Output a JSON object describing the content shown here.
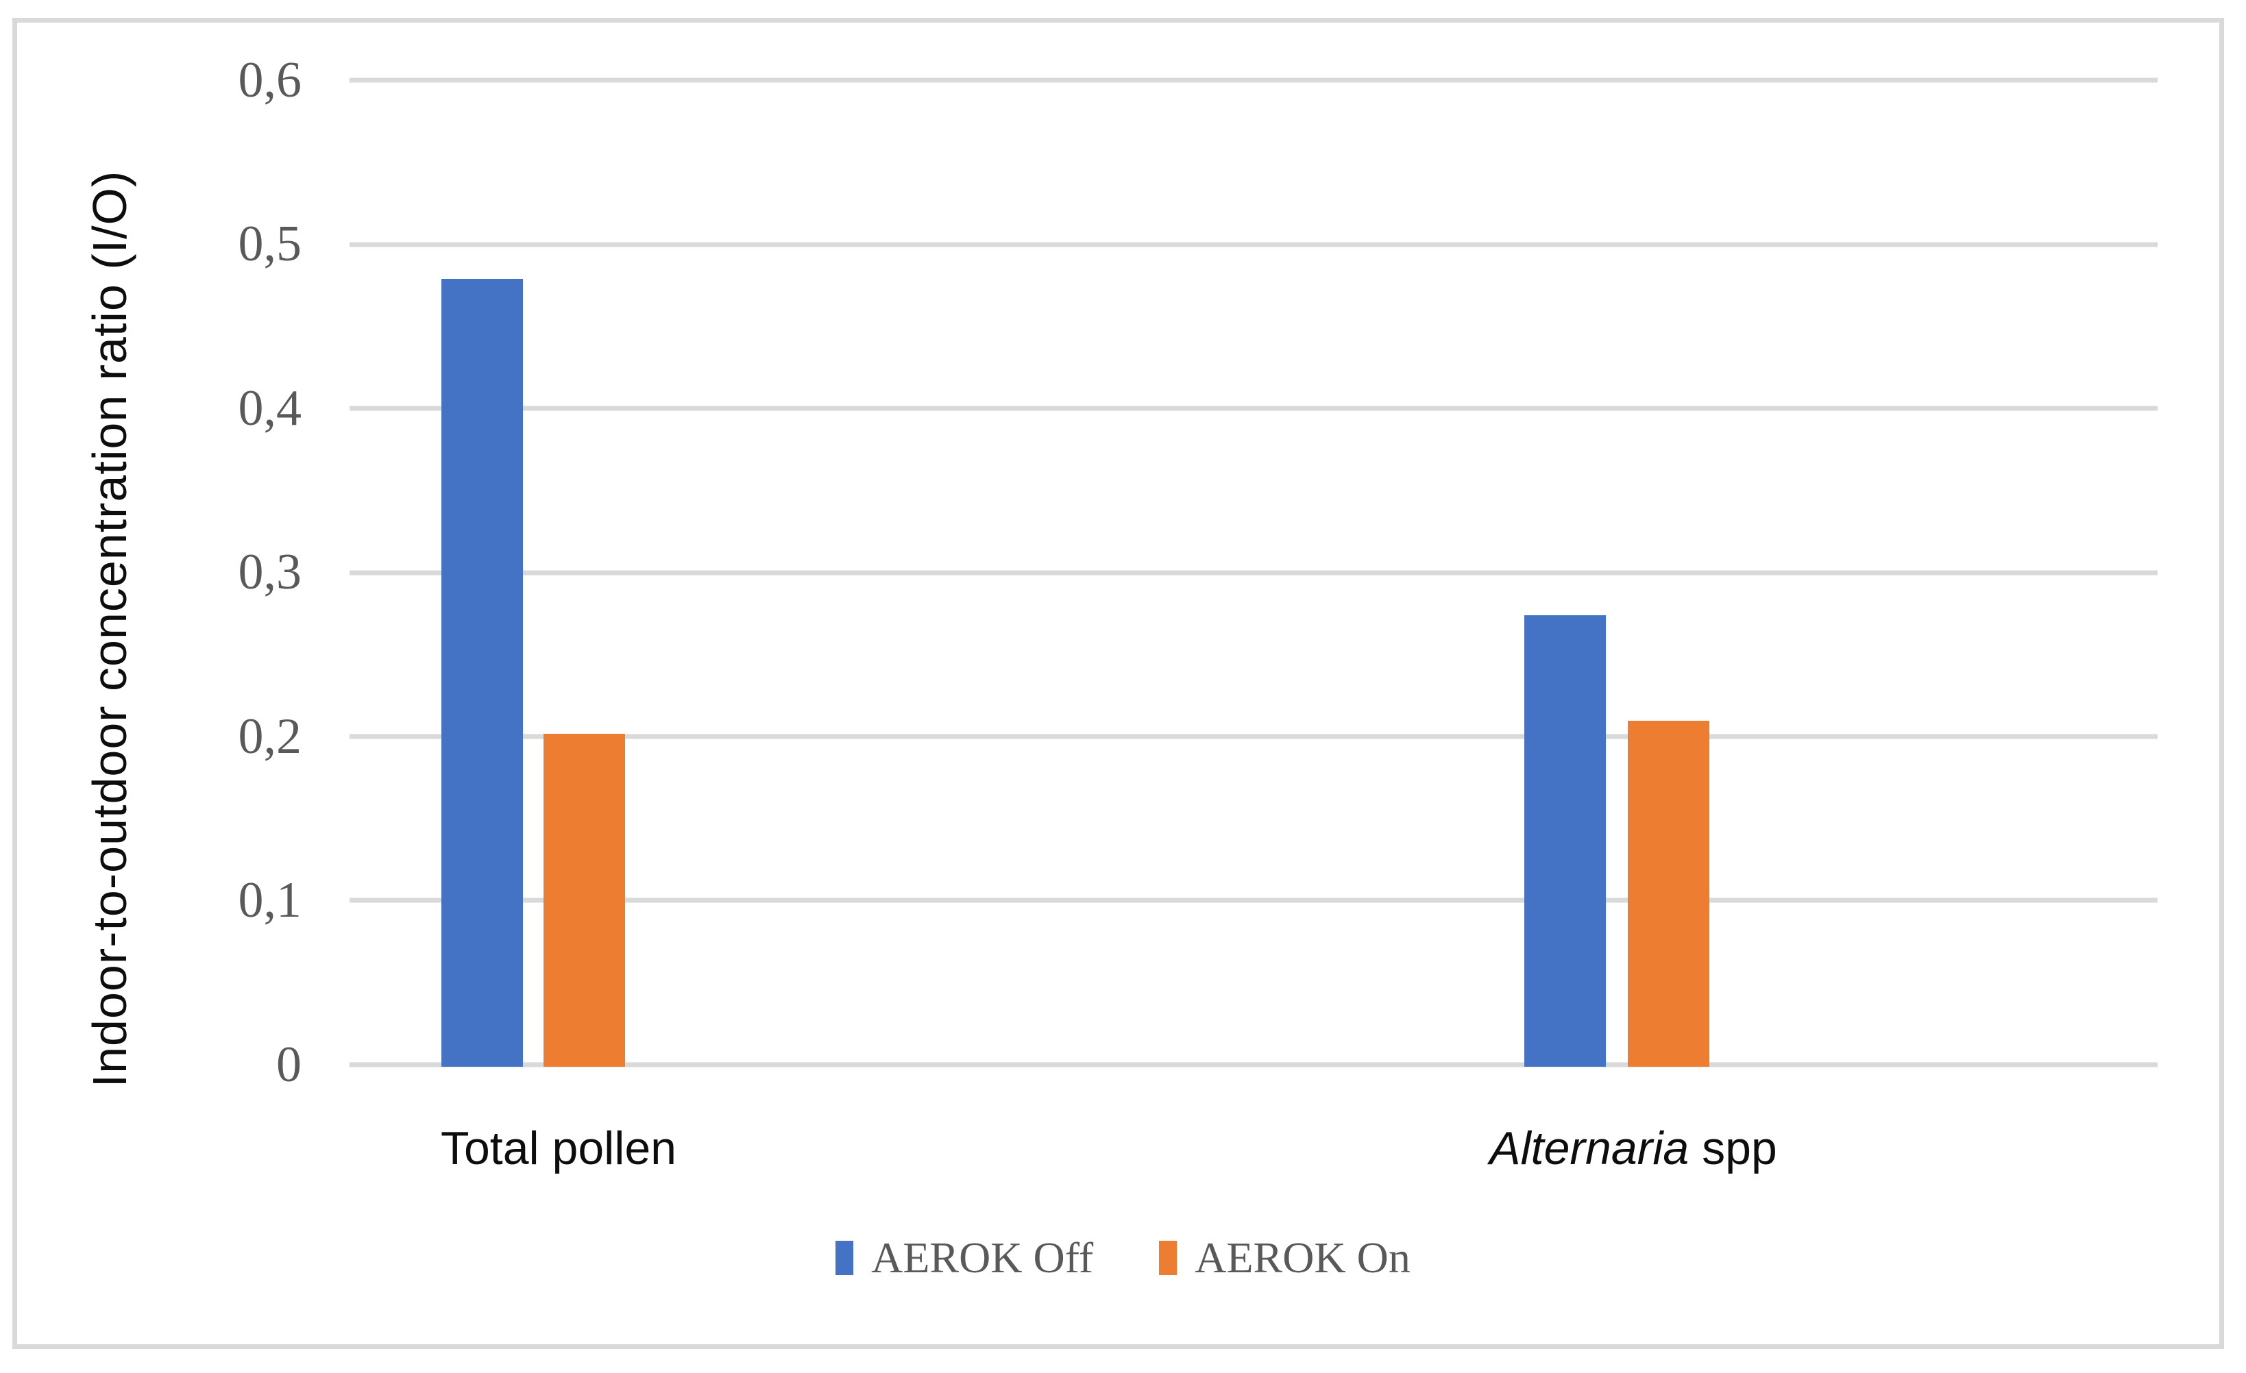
{
  "chart_data": {
    "type": "bar",
    "title": "",
    "categories": [
      "Total pollen",
      "Alternaria spp"
    ],
    "series": [
      {
        "name": "AEROK Off",
        "color": "#4472C4",
        "values": [
          0.48,
          0.275
        ]
      },
      {
        "name": "AEROK On",
        "color": "#ED7D31",
        "values": [
          0.203,
          0.211
        ]
      }
    ],
    "xlabel": "",
    "ylabel": "Indoor-to-outdoor concentration ratio (I/O)",
    "ylim": [
      0,
      0.6
    ],
    "ytick_step": 0.1,
    "decimal_separator": ",",
    "grid": true,
    "gridline_color": "#D9D9D9",
    "legend_position": "bottom"
  },
  "y_axis": {
    "title": "Indoor-to-outdoor concentration ratio (I/O)",
    "ticks": [
      "0,6",
      "0,5",
      "0,4",
      "0,3",
      "0,2",
      "0,1",
      "0"
    ]
  },
  "x_axis": {
    "categories": [
      {
        "italic": "",
        "plain": "Total pollen"
      },
      {
        "italic": "Alternaria",
        "plain": " spp"
      }
    ]
  },
  "legend": {
    "items": [
      {
        "label": "AEROK Off",
        "color": "#4472C4"
      },
      {
        "label": "AEROK On",
        "color": "#ED7D31"
      }
    ]
  },
  "colors": {
    "bar_blue": "#4472C4",
    "bar_orange": "#ED7D31",
    "grid": "#D9D9D9",
    "frame_border": "#D9D9D9",
    "tick_text": "#595959",
    "legend_text": "#595959",
    "label_text": "#0d0d0d"
  }
}
